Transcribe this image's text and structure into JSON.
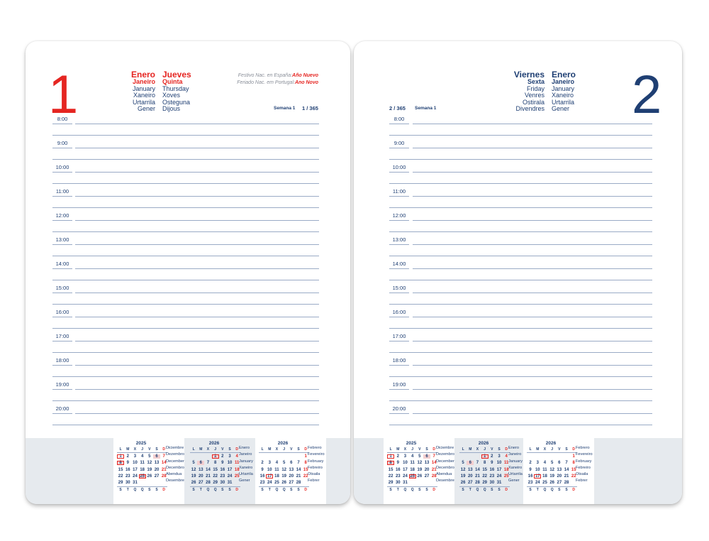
{
  "left": {
    "day_number": "1",
    "month": [
      "Enero",
      "Janeiro",
      "January",
      "Xaneiro",
      "Urtarrila",
      "Gener"
    ],
    "weekday": [
      "Jueves",
      "Quinta",
      "Thursday",
      "Xoves",
      "Osteguna",
      "Dijous"
    ],
    "holiday_es_label": "Festivo Nac. en España:",
    "holiday_es": "Año Nuevo",
    "holiday_pt_label": "Feriado Nac. em Portugal:",
    "holiday_pt": "Ano Novo",
    "week": "Semana 1",
    "day_of_year": "1 / 365",
    "color": "#e52521"
  },
  "right": {
    "day_number": "2",
    "weekday": [
      "Viernes",
      "Sexta",
      "Friday",
      "Venres",
      "Ostirala",
      "Divendres"
    ],
    "month": [
      "Enero",
      "Janeiro",
      "January",
      "Xaneiro",
      "Urtarrila",
      "Gener"
    ],
    "week": "Semana 1",
    "day_of_year": "2 / 365",
    "color": "#1f3f73"
  },
  "hours_left": [
    "8:00",
    "9:00",
    "10:00",
    "11:00",
    "12:00",
    "13:00",
    "14:00",
    "15:00",
    "16:00",
    "17:00",
    "18:00",
    "19:00",
    "20:00"
  ],
  "hours_right": [
    "8:00",
    "9:00",
    "10:00",
    "11:00",
    "12:00",
    "13:00",
    "14:00",
    "15:00",
    "16:00",
    "17:00",
    "18:00",
    "19:00",
    "20:00"
  ],
  "calendars": [
    {
      "year": "2025",
      "header": [
        "L",
        "M",
        "X",
        "J",
        "V",
        "S",
        "D"
      ],
      "footer": [
        "S",
        "T",
        "Q",
        "Q",
        "S",
        "S",
        "D"
      ],
      "months": [
        "Diciembre",
        "Dezembro",
        "December",
        "Decembro",
        "Abendua",
        "Desembre"
      ],
      "weeks": [
        [
          "1",
          "2",
          "3",
          "4",
          "5",
          "6",
          "7"
        ],
        [
          "8",
          "9",
          "10",
          "11",
          "12",
          "13",
          "14"
        ],
        [
          "15",
          "16",
          "17",
          "18",
          "19",
          "20",
          "21"
        ],
        [
          "22",
          "23",
          "24",
          "25",
          "26",
          "27",
          "28"
        ],
        [
          "29",
          "30",
          "31",
          "",
          "",
          "",
          ""
        ]
      ],
      "boxed": [
        "1",
        "8",
        "25"
      ],
      "shaded": [
        "6",
        "8",
        "25"
      ],
      "red_extra": []
    },
    {
      "year": "2026",
      "header": [
        "L",
        "M",
        "X",
        "J",
        "V",
        "S",
        "D"
      ],
      "footer": [
        "S",
        "T",
        "Q",
        "Q",
        "S",
        "S",
        "D"
      ],
      "months": [
        "Enero",
        "Janeiro",
        "January",
        "Xaneiro",
        "Urtarrila",
        "Gener"
      ],
      "weeks": [
        [
          "",
          "",
          "",
          "1",
          "2",
          "3",
          "4"
        ],
        [
          "5",
          "6",
          "7",
          "8",
          "9",
          "10",
          "11"
        ],
        [
          "12",
          "13",
          "14",
          "15",
          "16",
          "17",
          "18"
        ],
        [
          "19",
          "20",
          "21",
          "22",
          "23",
          "24",
          "25"
        ],
        [
          "26",
          "27",
          "28",
          "29",
          "30",
          "31",
          ""
        ]
      ],
      "boxed": [
        "1"
      ],
      "shaded": [
        "1",
        "6"
      ],
      "red_extra": []
    },
    {
      "year": "2026",
      "header": [
        "L",
        "M",
        "X",
        "J",
        "V",
        "S",
        "D"
      ],
      "footer": [
        "S",
        "T",
        "Q",
        "Q",
        "S",
        "S",
        "D"
      ],
      "months": [
        "Febrero",
        "Fevereiro",
        "February",
        "Febreiro",
        "Otsaila",
        "Febrer"
      ],
      "weeks": [
        [
          "",
          "",
          "",
          "",
          "",
          "",
          "1"
        ],
        [
          "2",
          "3",
          "4",
          "5",
          "6",
          "7",
          "8"
        ],
        [
          "9",
          "10",
          "11",
          "12",
          "13",
          "14",
          "15"
        ],
        [
          "16",
          "17",
          "18",
          "19",
          "20",
          "21",
          "22"
        ],
        [
          "23",
          "24",
          "25",
          "26",
          "27",
          "28",
          ""
        ]
      ],
      "boxed": [
        "17"
      ],
      "shaded": [],
      "red_extra": []
    }
  ]
}
